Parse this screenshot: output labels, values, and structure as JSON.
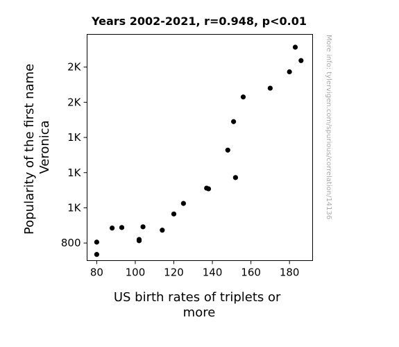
{
  "chart_data": {
    "type": "scatter",
    "title": "Years 2002-2021, r=0.948, p<0.01",
    "xlabel_lines": [
      "US birth rates of triplets or",
      "more"
    ],
    "ylabel_lines": [
      "Popularity of the first name",
      "Veronica"
    ],
    "watermark": "More info: tylervigen.com/spurious/correlation/14136",
    "xlim": [
      75,
      192
    ],
    "ylim": [
      700,
      1986
    ],
    "x_ticks": [
      {
        "value": 80,
        "label": "80"
      },
      {
        "value": 100,
        "label": "100"
      },
      {
        "value": 120,
        "label": "120"
      },
      {
        "value": 140,
        "label": "140"
      },
      {
        "value": 160,
        "label": "160"
      },
      {
        "value": 180,
        "label": "180"
      }
    ],
    "y_ticks": [
      {
        "value": 800,
        "label": "800"
      },
      {
        "value": 1000,
        "label": "1K"
      },
      {
        "value": 1200,
        "label": "1K"
      },
      {
        "value": 1400,
        "label": "1K"
      },
      {
        "value": 1600,
        "label": "2K"
      },
      {
        "value": 1800,
        "label": "2K"
      }
    ],
    "grid": false,
    "marker_color": "#000000",
    "points": [
      {
        "x": 80,
        "y": 805
      },
      {
        "x": 80,
        "y": 735
      },
      {
        "x": 88,
        "y": 885
      },
      {
        "x": 93,
        "y": 888
      },
      {
        "x": 102,
        "y": 813
      },
      {
        "x": 102,
        "y": 820
      },
      {
        "x": 104,
        "y": 892
      },
      {
        "x": 114,
        "y": 873
      },
      {
        "x": 120,
        "y": 965
      },
      {
        "x": 125,
        "y": 1025
      },
      {
        "x": 137,
        "y": 1112
      },
      {
        "x": 138,
        "y": 1108
      },
      {
        "x": 148,
        "y": 1328
      },
      {
        "x": 151,
        "y": 1490
      },
      {
        "x": 152,
        "y": 1172
      },
      {
        "x": 156,
        "y": 1630
      },
      {
        "x": 170,
        "y": 1680
      },
      {
        "x": 180,
        "y": 1773
      },
      {
        "x": 183,
        "y": 1913
      },
      {
        "x": 186,
        "y": 1837
      }
    ]
  }
}
